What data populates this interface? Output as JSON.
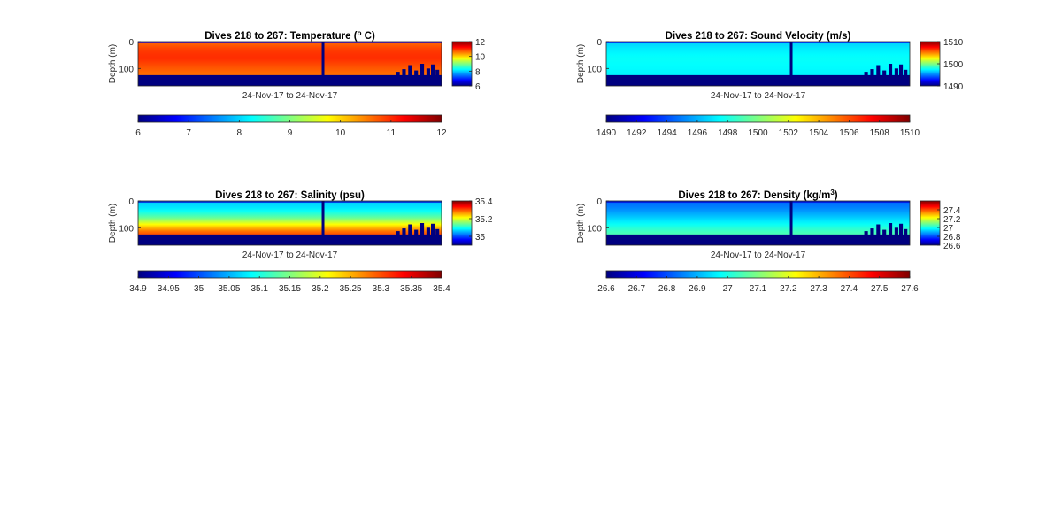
{
  "chart_data": [
    {
      "type": "heatmap",
      "title": "Dives 218 to 267: Temperature (° C)",
      "title_parts": [
        "Dives 218 to 267: Temperature (",
        "o",
        " C)"
      ],
      "xlabel": "24-Nov-17 to 24-Nov-17",
      "ylabel": "Depth (m)",
      "y_ticks": [
        "0",
        "100"
      ],
      "ylim": [
        0,
        165
      ],
      "bottom_depth_m": 125,
      "clim": [
        6,
        12
      ],
      "colorbar_ticks": [
        "12",
        "10",
        "8",
        "6"
      ],
      "colorbar_h_ticks": [
        "6",
        "7",
        "8",
        "9",
        "10",
        "11",
        "12"
      ],
      "surface_value": 10.6,
      "field": [
        {
          "depth": 0,
          "value": 10.6
        },
        {
          "depth": 30,
          "value": 10.9
        },
        {
          "depth": 60,
          "value": 11.0
        },
        {
          "depth": 90,
          "value": 10.8
        },
        {
          "depth": 120,
          "value": 10.6
        }
      ]
    },
    {
      "type": "heatmap",
      "title": "Dives 218 to 267: Sound Velocity (m/s)",
      "title_parts": [
        "Dives 218 to 267: Sound Velocity (m/s)",
        "",
        ""
      ],
      "xlabel": "24-Nov-17 to 24-Nov-17",
      "ylabel": "Depth (m)",
      "y_ticks": [
        "0",
        "100"
      ],
      "ylim": [
        0,
        165
      ],
      "bottom_depth_m": 125,
      "clim": [
        1490,
        1510
      ],
      "colorbar_ticks": [
        "1510",
        "1500",
        "1490"
      ],
      "colorbar_h_ticks": [
        "1490",
        "1492",
        "1494",
        "1496",
        "1498",
        "1500",
        "1502",
        "1504",
        "1506",
        "1508",
        "1510"
      ],
      "surface_value": 1496.5,
      "field": [
        {
          "depth": 0,
          "value": 1496.5
        },
        {
          "depth": 30,
          "value": 1497.2
        },
        {
          "depth": 60,
          "value": 1497.6
        },
        {
          "depth": 90,
          "value": 1497.5
        },
        {
          "depth": 120,
          "value": 1497.3
        }
      ]
    },
    {
      "type": "heatmap",
      "title": "Dives 218 to 267: Salinity (psu)",
      "title_parts": [
        "Dives 218 to 267: Salinity (psu)",
        "",
        ""
      ],
      "xlabel": "24-Nov-17 to 24-Nov-17",
      "ylabel": "Depth (m)",
      "y_ticks": [
        "0",
        "100"
      ],
      "ylim": [
        0,
        165
      ],
      "bottom_depth_m": 125,
      "clim": [
        34.9,
        35.4
      ],
      "colorbar_ticks": [
        "35.4",
        "35.2",
        "35"
      ],
      "colorbar_h_ticks": [
        "34.9",
        "34.95",
        "35",
        "35.05",
        "35.1",
        "35.15",
        "35.2",
        "35.25",
        "35.3",
        "35.35",
        "35.4"
      ],
      "surface_value": 35.06,
      "field": [
        {
          "depth": 0,
          "value": 35.06
        },
        {
          "depth": 30,
          "value": 35.08
        },
        {
          "depth": 60,
          "value": 35.13
        },
        {
          "depth": 90,
          "value": 35.22
        },
        {
          "depth": 120,
          "value": 35.3
        }
      ]
    },
    {
      "type": "heatmap",
      "title": "Dives 218 to 267: Density (kg/m³)",
      "title_parts": [
        "Dives 218 to 267: Density (kg/m",
        "3",
        ")"
      ],
      "xlabel": "24-Nov-17 to 24-Nov-17",
      "ylabel": "Depth (m)",
      "y_ticks": [
        "0",
        "100"
      ],
      "ylim": [
        0,
        165
      ],
      "bottom_depth_m": 125,
      "clim": [
        26.6,
        27.6
      ],
      "colorbar_ticks": [
        "27.4",
        "27.2",
        "27",
        "26.8",
        "26.6"
      ],
      "colorbar_h_ticks": [
        "26.6",
        "26.7",
        "26.8",
        "26.9",
        "27",
        "27.1",
        "27.2",
        "27.3",
        "27.4",
        "27.5",
        "27.6"
      ],
      "surface_value": 26.82,
      "field": [
        {
          "depth": 0,
          "value": 26.82
        },
        {
          "depth": 30,
          "value": 26.86
        },
        {
          "depth": 60,
          "value": 26.92
        },
        {
          "depth": 90,
          "value": 26.99
        },
        {
          "depth": 120,
          "value": 27.05
        }
      ]
    }
  ]
}
